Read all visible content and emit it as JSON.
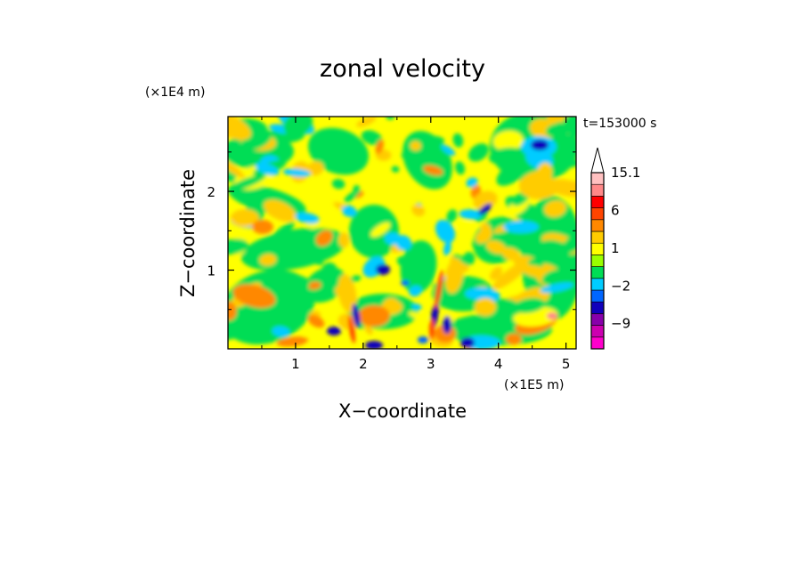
{
  "chart_data": {
    "type": "heatmap",
    "title": "zonal velocity",
    "xlabel": "X−coordinate",
    "ylabel": "Z−coordinate",
    "x_unit": "(×1E5 m)",
    "y_unit": "(×1E4 m)",
    "time_label": "t=153000 s",
    "xlim": [
      0,
      5.15
    ],
    "ylim": [
      0,
      2.95
    ],
    "x_ticks": [
      "1",
      "2",
      "3",
      "4",
      "5"
    ],
    "x_tick_values": [
      1,
      2,
      3,
      4,
      5
    ],
    "y_ticks": [
      "1",
      "2"
    ],
    "y_tick_values": [
      1,
      2
    ],
    "colorbar": {
      "levels": [
        -15,
        -12,
        -9,
        -6,
        -4,
        -2,
        -1,
        0,
        1,
        2,
        4,
        6,
        9,
        12,
        15.1
      ],
      "colors": [
        "#ff00cc",
        "#cc00b0",
        "#8800aa",
        "#1100bb",
        "#0066ff",
        "#00ccff",
        "#00dd55",
        "#99ff00",
        "#ffff00",
        "#ffcc00",
        "#ff8800",
        "#ff4400",
        "#ff0000",
        "#ff8888",
        "#ffc0c0"
      ],
      "extend_color": "#ffffff",
      "labels": [
        "15.1",
        "6",
        "1",
        "−2",
        "−9"
      ],
      "label_values": [
        15.1,
        6,
        1,
        -2,
        -9
      ]
    }
  }
}
